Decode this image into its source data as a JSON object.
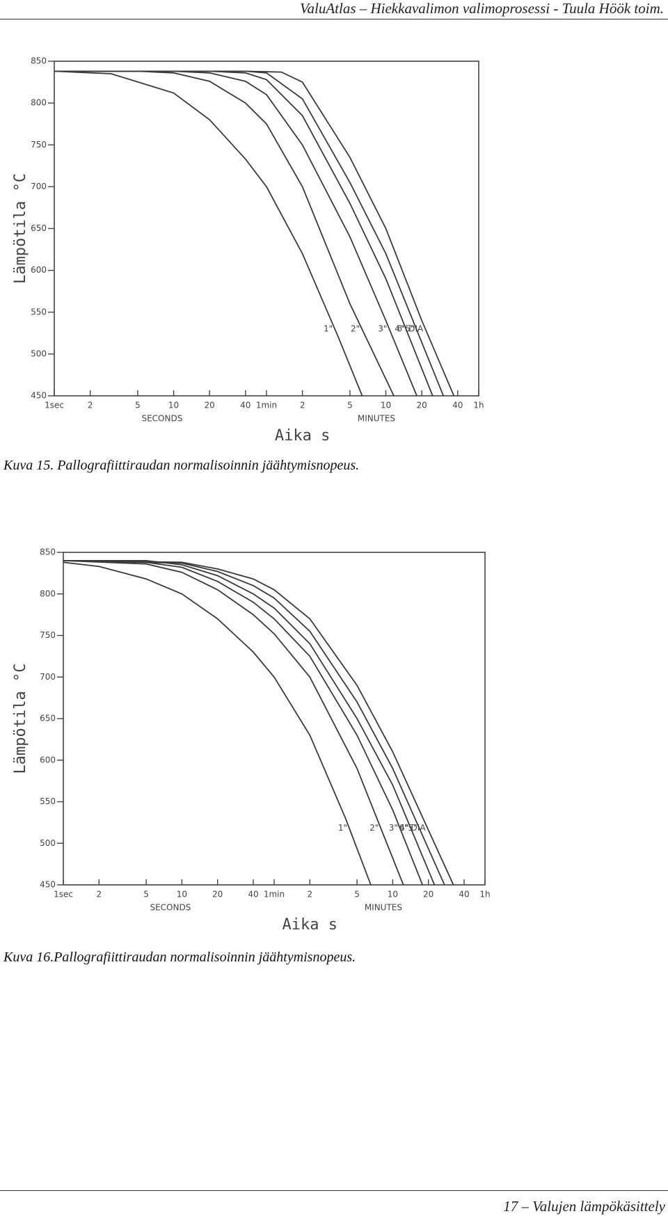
{
  "header": {
    "title": "ValuAtlas – Hiekkavalimon valimoprosessi - Tuula Höök toim."
  },
  "captions": [
    "Kuva 15. Pallografiittiraudan normalisoinnin jäähtymisnopeus.",
    "Kuva 16.Pallografiittiraudan normalisoinnin jäähtymisnopeus."
  ],
  "footer": {
    "text": "17 – Valujen lämpökäsittely"
  },
  "chart_data": [
    {
      "type": "line",
      "xlabel": "Aika s",
      "ylabel": "Lämpötila °C",
      "x_groups": [
        "SECONDS",
        "MINUTES"
      ],
      "xscale": "log",
      "xlim": [
        1,
        3600
      ],
      "ylim": [
        450,
        850
      ],
      "xticks": [
        {
          "value": 1,
          "label": "1sec"
        },
        2,
        5,
        10,
        20,
        40,
        {
          "value": 60,
          "label": "1min"
        },
        {
          "value": 120,
          "label": "2"
        },
        {
          "value": 300,
          "label": "5"
        },
        {
          "value": 600,
          "label": "10"
        },
        {
          "value": 1200,
          "label": "20"
        },
        {
          "value": 2400,
          "label": "40"
        },
        {
          "value": 3600,
          "label": "1h"
        }
      ],
      "yticks": [
        450,
        500,
        550,
        600,
        650,
        700,
        750,
        800,
        850
      ],
      "series": [
        {
          "name": "1\"",
          "color": "#3a3a3a",
          "x": [
            1,
            3,
            10,
            20,
            40,
            60,
            120,
            240,
            380
          ],
          "values": [
            838,
            835,
            812,
            780,
            733,
            700,
            620,
            520,
            450
          ]
        },
        {
          "name": "2\"",
          "color": "#3a3a3a",
          "x": [
            1,
            5,
            10,
            20,
            40,
            60,
            120,
            300,
            700
          ],
          "values": [
            838,
            838,
            836,
            826,
            800,
            775,
            700,
            560,
            450
          ]
        },
        {
          "name": "3\"",
          "color": "#3a3a3a",
          "x": [
            1,
            10,
            20,
            40,
            60,
            120,
            300,
            600,
            1090
          ],
          "values": [
            838,
            838,
            836,
            826,
            810,
            750,
            640,
            540,
            450
          ]
        },
        {
          "name": "4\"",
          "color": "#3a3a3a",
          "x": [
            1,
            20,
            40,
            60,
            120,
            300,
            600,
            1480
          ],
          "values": [
            838,
            838,
            836,
            828,
            785,
            680,
            590,
            450
          ]
        },
        {
          "name": "5\"",
          "color": "#3a3a3a",
          "x": [
            1,
            40,
            60,
            120,
            300,
            600,
            1820
          ],
          "values": [
            838,
            838,
            836,
            805,
            705,
            620,
            450
          ]
        },
        {
          "name": "6\" DIA",
          "color": "#3a3a3a",
          "x": [
            1,
            40,
            80,
            120,
            300,
            600,
            1200,
            2230
          ],
          "values": [
            838,
            838,
            837,
            825,
            735,
            650,
            540,
            450
          ]
        }
      ]
    },
    {
      "type": "line",
      "xlabel": "Aika s",
      "ylabel": "Lämpötila °C",
      "x_groups": [
        "SECONDS",
        "MINUTES"
      ],
      "xscale": "log",
      "xlim": [
        1,
        3600
      ],
      "ylim": [
        450,
        850
      ],
      "xticks": [
        {
          "value": 1,
          "label": "1sec"
        },
        2,
        5,
        10,
        20,
        40,
        {
          "value": 60,
          "label": "1min"
        },
        {
          "value": 120,
          "label": "2"
        },
        {
          "value": 300,
          "label": "5"
        },
        {
          "value": 600,
          "label": "10"
        },
        {
          "value": 1200,
          "label": "20"
        },
        {
          "value": 2400,
          "label": "40"
        },
        {
          "value": 3600,
          "label": "1h"
        }
      ],
      "yticks": [
        450,
        500,
        550,
        600,
        650,
        700,
        750,
        800,
        850
      ],
      "series": [
        {
          "name": "1\"",
          "color": "#3a3a3a",
          "x": [
            1,
            2,
            5,
            10,
            20,
            40,
            60,
            120,
            240,
            392
          ],
          "values": [
            838,
            833,
            818,
            800,
            770,
            730,
            700,
            630,
            530,
            450
          ]
        },
        {
          "name": "2\"",
          "color": "#3a3a3a",
          "x": [
            1,
            5,
            10,
            20,
            40,
            60,
            120,
            300,
            738
          ],
          "values": [
            840,
            836,
            826,
            805,
            775,
            752,
            700,
            590,
            450
          ]
        },
        {
          "name": "3\"",
          "color": "#3a3a3a",
          "x": [
            1,
            5,
            10,
            20,
            40,
            60,
            120,
            300,
            600,
            1070
          ],
          "values": [
            840,
            838,
            832,
            815,
            790,
            770,
            725,
            630,
            540,
            450
          ]
        },
        {
          "name": "4\"",
          "color": "#3a3a3a",
          "x": [
            1,
            5,
            10,
            20,
            40,
            60,
            120,
            300,
            600,
            1350
          ],
          "values": [
            840,
            840,
            835,
            822,
            800,
            783,
            740,
            650,
            570,
            450
          ]
        },
        {
          "name": "5\"",
          "color": "#3a3a3a",
          "x": [
            1,
            10,
            20,
            40,
            60,
            120,
            300,
            600,
            1640
          ],
          "values": [
            840,
            837,
            827,
            810,
            795,
            755,
            670,
            590,
            450
          ]
        },
        {
          "name": "6\" DIA",
          "color": "#3a3a3a",
          "x": [
            1,
            10,
            20,
            40,
            60,
            120,
            300,
            600,
            1950
          ],
          "values": [
            840,
            838,
            830,
            818,
            805,
            770,
            690,
            610,
            450
          ]
        }
      ]
    }
  ]
}
